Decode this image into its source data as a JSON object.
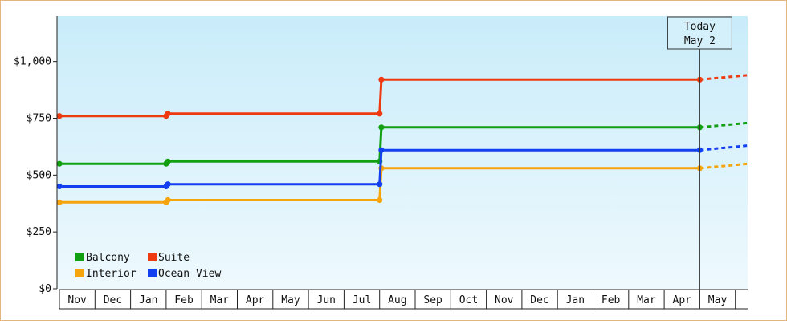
{
  "chart_data": {
    "type": "line",
    "title": "",
    "xlabel": "",
    "ylabel": "",
    "ylim": [
      0,
      1200
    ],
    "y_ticks": [
      0,
      250,
      500,
      750,
      1000
    ],
    "y_tick_labels": [
      "$0",
      "$250",
      "$500",
      "$750",
      "$1,000"
    ],
    "months": [
      "Nov",
      "Dec",
      "Jan",
      "Feb",
      "Mar",
      "Apr",
      "May",
      "Jun",
      "Jul",
      "Aug",
      "Sep",
      "Oct",
      "Nov",
      "Dec",
      "Jan",
      "Feb",
      "Mar",
      "Apr",
      "May"
    ],
    "grid": false,
    "legend_position": "bottom-left",
    "colors": {
      "plot_top": "#c9ecfa",
      "plot_bottom": "#eef9fd",
      "border": "#e3b57e"
    },
    "today_marker": {
      "line1": "Today",
      "line2": "May 2",
      "x": 18.0
    },
    "projection_end_x": 19.4,
    "series": [
      {
        "name": "Balcony",
        "color": "#12a012",
        "points": [
          [
            0.0,
            550
          ],
          [
            3.0,
            550
          ],
          [
            3.05,
            560
          ],
          [
            9.0,
            560
          ],
          [
            9.05,
            710
          ],
          [
            18.0,
            710
          ]
        ],
        "projection": [
          [
            18.0,
            710
          ],
          [
            19.4,
            730
          ]
        ]
      },
      {
        "name": "Suite",
        "color": "#ee3a10",
        "points": [
          [
            0.0,
            760
          ],
          [
            3.0,
            760
          ],
          [
            3.05,
            770
          ],
          [
            9.0,
            770
          ],
          [
            9.05,
            920
          ],
          [
            18.0,
            920
          ]
        ],
        "projection": [
          [
            18.0,
            920
          ],
          [
            19.4,
            940
          ]
        ]
      },
      {
        "name": "Interior",
        "color": "#f5a40d",
        "points": [
          [
            0.0,
            380
          ],
          [
            3.0,
            380
          ],
          [
            3.05,
            390
          ],
          [
            9.0,
            390
          ],
          [
            9.05,
            530
          ],
          [
            18.0,
            530
          ]
        ],
        "projection": [
          [
            18.0,
            530
          ],
          [
            19.4,
            550
          ]
        ]
      },
      {
        "name": "Ocean View",
        "color": "#1240f0",
        "points": [
          [
            0.0,
            450
          ],
          [
            3.0,
            450
          ],
          [
            3.05,
            460
          ],
          [
            9.0,
            460
          ],
          [
            9.05,
            610
          ],
          [
            18.0,
            610
          ]
        ],
        "projection": [
          [
            18.0,
            610
          ],
          [
            19.4,
            630
          ]
        ]
      }
    ]
  }
}
